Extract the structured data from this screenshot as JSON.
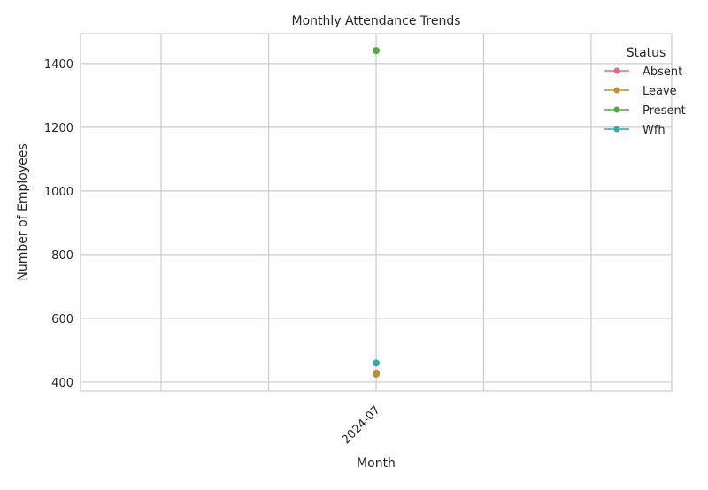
{
  "chart_data": {
    "type": "line",
    "title": "Monthly Attendance Trends",
    "xlabel": "Month",
    "ylabel": "Number of Employees",
    "categories": [
      "2024-07"
    ],
    "x_tick_labels": [
      "2024-07"
    ],
    "ylim": [
      372,
      1494
    ],
    "y_ticks": [
      400,
      600,
      800,
      1000,
      1200,
      1400
    ],
    "grid": true,
    "legend": {
      "title": "Status",
      "placement": "top-right"
    },
    "series": [
      {
        "name": "Absent",
        "color": "#e8697e",
        "values": [
          428
        ]
      },
      {
        "name": "Leave",
        "color": "#b8922b",
        "values": [
          425
        ]
      },
      {
        "name": "Present",
        "color": "#50ab3a",
        "values": [
          1441
        ]
      },
      {
        "name": "Wfh",
        "color": "#33aaa6",
        "values": [
          460
        ]
      }
    ]
  }
}
